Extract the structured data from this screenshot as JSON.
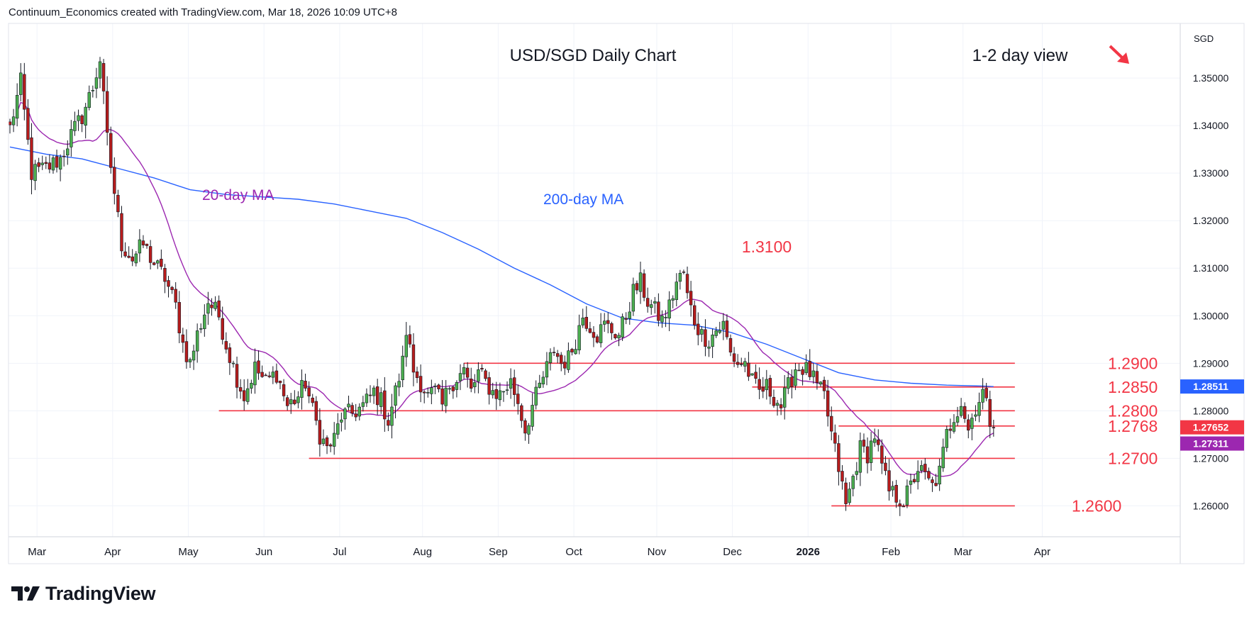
{
  "header": {
    "credit": "Continuum_Economics created with TradingView.com, Mar 18, 2026 10:09 UTC+8"
  },
  "brand": {
    "name": "TradingView"
  },
  "chart_data": {
    "type": "candlestick",
    "title": "USD/SGD Daily Chart",
    "subtitle": "1-2 day view",
    "bias_arrow": {
      "direction": "down",
      "color": "#f23645"
    },
    "currency_label": "SGD",
    "ylim": [
      1.2535,
      1.3615
    ],
    "y_ticks": [
      "1.26000",
      "1.27000",
      "1.28000",
      "1.29000",
      "1.30000",
      "1.31000",
      "1.32000",
      "1.33000",
      "1.34000",
      "1.35000"
    ],
    "x_ticks": [
      {
        "label": "Mar",
        "x": 2
      },
      {
        "label": "Apr",
        "x": 23
      },
      {
        "label": "May",
        "x": 44
      },
      {
        "label": "Jun",
        "x": 65
      },
      {
        "label": "Jul",
        "x": 86
      },
      {
        "label": "Aug",
        "x": 109
      },
      {
        "label": "Sep",
        "x": 130
      },
      {
        "label": "Oct",
        "x": 151
      },
      {
        "label": "Nov",
        "x": 174
      },
      {
        "label": "Dec",
        "x": 195
      },
      {
        "label": "2026",
        "x": 216
      },
      {
        "label": "Feb",
        "x": 239
      },
      {
        "label": "Mar",
        "x": 259
      },
      {
        "label": "Apr",
        "x": 281
      }
    ],
    "levels": [
      {
        "label": "1.2900",
        "value": 1.29,
        "x_start": 126
      },
      {
        "label": "1.2850",
        "value": 1.285,
        "x_start": 206
      },
      {
        "label": "1.2800",
        "value": 1.28,
        "x_start": 58
      },
      {
        "label": "1.2768",
        "value": 1.2768,
        "x_start": 230
      },
      {
        "label": "1.2700",
        "value": 1.27,
        "x_start": 83
      },
      {
        "label": "1.2600",
        "value": 1.26,
        "x_start": 228
      }
    ],
    "peak_annotation": {
      "label": "1.3100",
      "value": 1.31
    },
    "ma_labels": {
      "ma20": "20-day MA",
      "ma200": "200-day MA"
    },
    "price_badges": [
      {
        "label": "1.28511",
        "value": 1.28511,
        "color": "#2962ff"
      },
      {
        "label": "1.27652",
        "value": 1.27652,
        "color": "#f23645"
      },
      {
        "label": "1.27311",
        "value": 1.27311,
        "color": "#9c27b0"
      }
    ],
    "anchors": [
      [
        0,
        1.3395
      ],
      [
        3,
        1.349
      ],
      [
        6,
        1.33
      ],
      [
        10,
        1.331
      ],
      [
        14,
        1.333
      ],
      [
        17,
        1.338
      ],
      [
        20,
        1.342
      ],
      [
        23,
        1.348
      ],
      [
        25,
        1.354
      ],
      [
        27,
        1.337
      ],
      [
        29,
        1.326
      ],
      [
        31,
        1.315
      ],
      [
        34,
        1.312
      ],
      [
        37,
        1.315
      ],
      [
        40,
        1.311
      ],
      [
        43,
        1.308
      ],
      [
        46,
        1.302
      ],
      [
        48,
        1.294
      ],
      [
        50,
        1.29
      ],
      [
        52,
        1.296
      ],
      [
        55,
        1.303
      ],
      [
        58,
        1.3
      ],
      [
        60,
        1.294
      ],
      [
        63,
        1.287
      ],
      [
        65,
        1.283
      ],
      [
        68,
        1.289
      ],
      [
        71,
        1.286
      ],
      [
        74,
        1.288
      ],
      [
        77,
        1.281
      ],
      [
        80,
        1.283
      ],
      [
        82,
        1.286
      ],
      [
        84,
        1.28
      ],
      [
        86,
        1.275
      ],
      [
        88,
        1.272
      ],
      [
        90,
        1.274
      ],
      [
        92,
        1.279
      ],
      [
        95,
        1.2795
      ],
      [
        98,
        1.281
      ],
      [
        101,
        1.284
      ],
      [
        103,
        1.282
      ],
      [
        105,
        1.278
      ],
      [
        107,
        1.284
      ],
      [
        109,
        1.29
      ],
      [
        110,
        1.297
      ],
      [
        112,
        1.2885
      ],
      [
        114,
        1.286
      ],
      [
        116,
        1.283
      ],
      [
        118,
        1.284
      ],
      [
        120,
        1.281
      ],
      [
        122,
        1.2855
      ],
      [
        124,
        1.287
      ],
      [
        126,
        1.2885
      ],
      [
        128,
        1.284
      ],
      [
        130,
        1.288
      ],
      [
        132,
        1.286
      ],
      [
        134,
        1.284
      ],
      [
        136,
        1.2835
      ],
      [
        139,
        1.286
      ],
      [
        141,
        1.282
      ],
      [
        143,
        1.276
      ],
      [
        145,
        1.281
      ],
      [
        147,
        1.285
      ],
      [
        149,
        1.289
      ],
      [
        151,
        1.293
      ],
      [
        153,
        1.29
      ],
      [
        155,
        1.291
      ],
      [
        157,
        1.295
      ],
      [
        159,
        1.3
      ],
      [
        161,
        1.298
      ],
      [
        163,
        1.296
      ],
      [
        165,
        1.298
      ],
      [
        167,
        1.297
      ],
      [
        169,
        1.296
      ],
      [
        171,
        1.3
      ],
      [
        173,
        1.305
      ],
      [
        175,
        1.307
      ],
      [
        177,
        1.303
      ],
      [
        179,
        1.301
      ],
      [
        181,
        1.299
      ],
      [
        183,
        1.302
      ],
      [
        185,
        1.307
      ],
      [
        187,
        1.309
      ],
      [
        188,
        1.304
      ],
      [
        190,
        1.299
      ],
      [
        192,
        1.296
      ],
      [
        194,
        1.295
      ],
      [
        196,
        1.297
      ],
      [
        198,
        1.298
      ],
      [
        200,
        1.292
      ],
      [
        202,
        1.29
      ],
      [
        204,
        1.29
      ],
      [
        206,
        1.286
      ],
      [
        208,
        1.284
      ],
      [
        210,
        1.285
      ],
      [
        212,
        1.283
      ],
      [
        214,
        1.281
      ],
      [
        216,
        1.285
      ],
      [
        218,
        1.289
      ],
      [
        220,
        1.289
      ],
      [
        222,
        1.288
      ],
      [
        224,
        1.285
      ],
      [
        226,
        1.283
      ],
      [
        228,
        1.275
      ],
      [
        230,
        1.268
      ],
      [
        232,
        1.26
      ],
      [
        234,
        1.266
      ],
      [
        236,
        1.272
      ],
      [
        238,
        1.271
      ],
      [
        240,
        1.275
      ],
      [
        242,
        1.268
      ],
      [
        244,
        1.263
      ],
      [
        246,
        1.262
      ],
      [
        248,
        1.261
      ],
      [
        250,
        1.264
      ],
      [
        252,
        1.268
      ],
      [
        254,
        1.266
      ],
      [
        256,
        1.264
      ],
      [
        258,
        1.267
      ],
      [
        260,
        1.275
      ],
      [
        262,
        1.279
      ],
      [
        264,
        1.282
      ],
      [
        266,
        1.276
      ],
      [
        268,
        1.281
      ],
      [
        270,
        1.284
      ],
      [
        272,
        1.278
      ],
      [
        273,
        1.2765
      ]
    ],
    "ma200": [
      [
        0,
        1.3355
      ],
      [
        10,
        1.334
      ],
      [
        20,
        1.333
      ],
      [
        30,
        1.331
      ],
      [
        40,
        1.329
      ],
      [
        50,
        1.3265
      ],
      [
        60,
        1.3255
      ],
      [
        70,
        1.325
      ],
      [
        80,
        1.3245
      ],
      [
        90,
        1.3235
      ],
      [
        100,
        1.322
      ],
      [
        110,
        1.3205
      ],
      [
        120,
        1.3175
      ],
      [
        130,
        1.314
      ],
      [
        140,
        1.31
      ],
      [
        150,
        1.3065
      ],
      [
        160,
        1.3025
      ],
      [
        170,
        1.2995
      ],
      [
        180,
        1.2985
      ],
      [
        190,
        1.298
      ],
      [
        200,
        1.2965
      ],
      [
        210,
        1.294
      ],
      [
        220,
        1.291
      ],
      [
        230,
        1.288
      ],
      [
        240,
        1.2865
      ],
      [
        250,
        1.2858
      ],
      [
        260,
        1.2854
      ],
      [
        270,
        1.2852
      ],
      [
        273,
        1.2851
      ]
    ]
  }
}
